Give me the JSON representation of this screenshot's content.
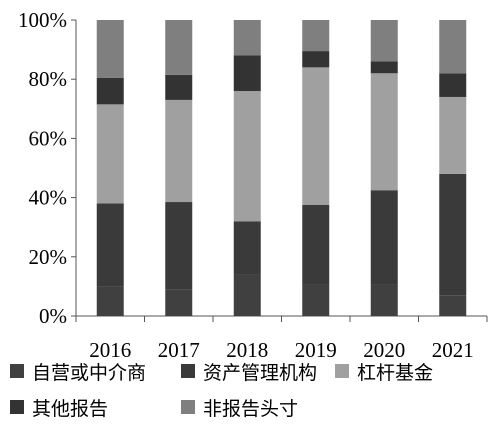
{
  "chart_data": {
    "type": "bar",
    "stacked": true,
    "categories": [
      "2016",
      "2017",
      "2018",
      "2019",
      "2020",
      "2021"
    ],
    "ylim": [
      0,
      100
    ],
    "yticks": [
      "0%",
      "20%",
      "40%",
      "60%",
      "80%",
      "100%"
    ],
    "series": [
      {
        "name": "自营或中介商",
        "color": "#404040",
        "values": [
          10,
          9,
          14,
          10.5,
          10.5,
          7
        ]
      },
      {
        "name": "资产管理机构",
        "color": "#3a3a3a",
        "values": [
          28,
          29.5,
          18,
          27,
          32,
          41
        ]
      },
      {
        "name": "杠杆基金",
        "color": "#a0a0a0",
        "values": [
          33.5,
          34.5,
          44,
          46.5,
          39.5,
          26
        ]
      },
      {
        "name": "其他报告",
        "color": "#333333",
        "values": [
          9,
          8.5,
          12,
          5.5,
          4,
          8
        ]
      },
      {
        "name": "非报告头寸",
        "color": "#7f7f7f",
        "values": [
          19.5,
          18.5,
          12,
          10.5,
          14,
          18
        ]
      }
    ],
    "legend_rows": [
      [
        0,
        1,
        2
      ],
      [
        3,
        4
      ]
    ],
    "grid": false
  }
}
